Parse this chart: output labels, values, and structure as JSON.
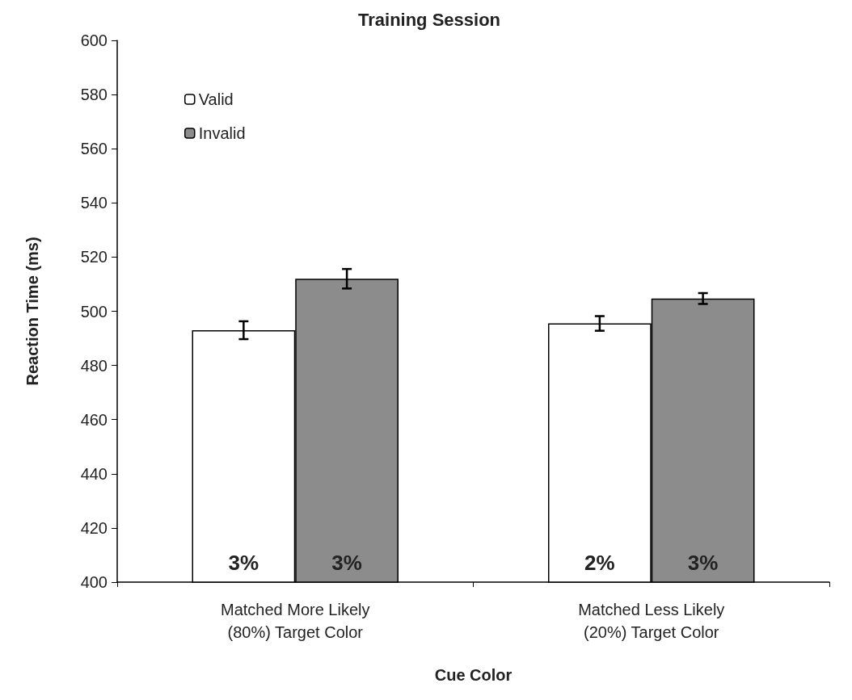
{
  "chart_data": {
    "type": "bar",
    "title": "Training Session",
    "xlabel": "Cue Color",
    "ylabel": "Reaction Time (ms)",
    "categories": [
      "Matched More Likely\n(80%) Target Color",
      "Matched Less Likely\n(20%) Target Color"
    ],
    "series": [
      {
        "name": "Valid",
        "color": "#ffffff",
        "values": [
          493,
          495.5
        ],
        "errors": [
          3.3,
          2.7
        ]
      },
      {
        "name": "Invalid",
        "color": "#8c8c8c",
        "values": [
          512,
          504.7
        ],
        "errors": [
          3.6,
          2
        ]
      }
    ],
    "annotations": [
      "3%",
      "2%",
      "3%",
      "3%"
    ],
    "ylim": [
      400,
      600
    ],
    "yticks": [
      400,
      420,
      440,
      460,
      480,
      500,
      520,
      540,
      560,
      580,
      600
    ],
    "grid": false,
    "legend": "top left"
  }
}
